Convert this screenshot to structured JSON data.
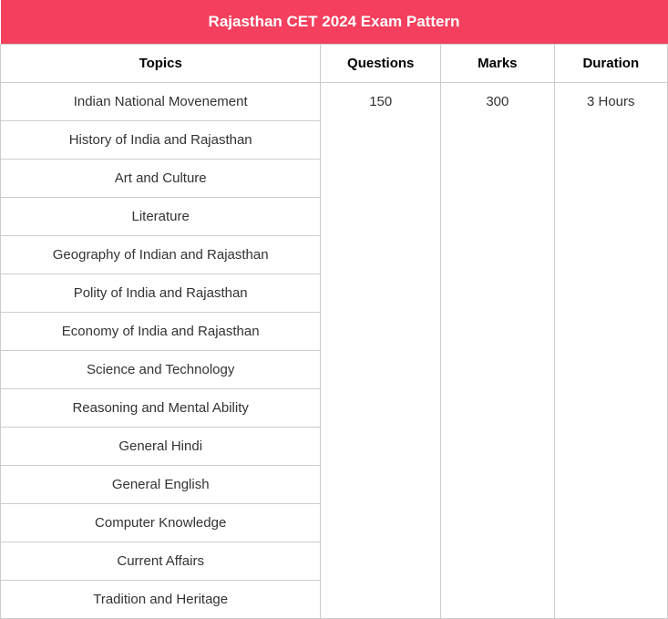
{
  "table": {
    "title": "Rajasthan CET 2024 Exam Pattern",
    "title_bg_color": "#f43f5e",
    "title_text_color": "#ffffff",
    "title_fontsize": 17,
    "border_color": "#cccccc",
    "background_color": "#ffffff",
    "text_color": "#333333",
    "header_fontsize": 15,
    "cell_fontsize": 15,
    "columns": [
      {
        "key": "topics",
        "label": "Topics",
        "width": "48%"
      },
      {
        "key": "questions",
        "label": "Questions",
        "width": "18%"
      },
      {
        "key": "marks",
        "label": "Marks",
        "width": "17%"
      },
      {
        "key": "duration",
        "label": "Duration",
        "width": "17%"
      }
    ],
    "topics": [
      "Indian National Movenement",
      "History of India and Rajasthan",
      "Art and Culture",
      "Literature",
      "Geography of Indian and Rajasthan",
      "Polity of India and Rajasthan",
      "Economy of India and Rajasthan",
      "Science and Technology",
      "Reasoning and Mental Ability",
      "General Hindi",
      "General English",
      "Computer Knowledge",
      "Current Affairs",
      "Tradition and Heritage"
    ],
    "questions": "150",
    "marks": "300",
    "duration": "3 Hours"
  }
}
